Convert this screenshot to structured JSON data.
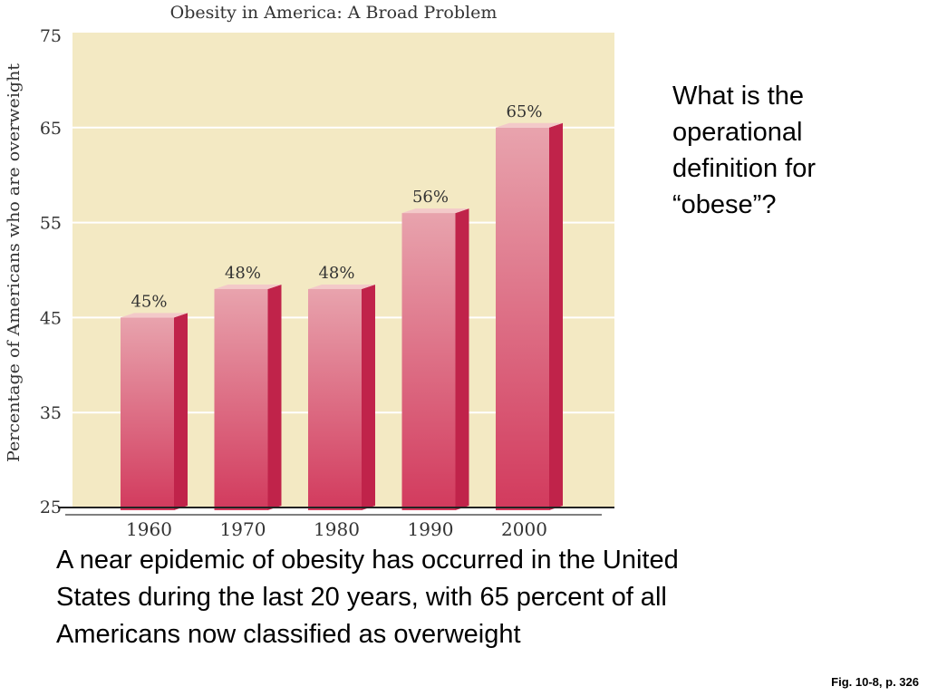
{
  "slide": {
    "question": "What is the operational definition for “obese”?",
    "caption": "A near epidemic of obesity has occurred in the United States during the last 20 years, with 65 percent of all Americans now classified as overweight",
    "figure_ref": "Fig. 10-8, p. 326"
  },
  "colors": {
    "plot_background": "#f3e9c3",
    "bar_front_top": "#e8a3ad",
    "bar_front_bottom": "#d23a5d",
    "bar_side": "#c0234a",
    "bar_top": "#f3c9c9",
    "gridline": "#ffffff",
    "axis": "#222222"
  },
  "chart_data": {
    "type": "bar",
    "title": "Obesity in America: A Broad Problem",
    "xlabel": "",
    "ylabel": "Percentage of Americans who are overweight",
    "categories": [
      "1960",
      "1970",
      "1980",
      "1990",
      "2000"
    ],
    "values": [
      45,
      48,
      48,
      56,
      65
    ],
    "data_labels": [
      "45%",
      "48%",
      "48%",
      "56%",
      "65%"
    ],
    "ylim": [
      25,
      75
    ],
    "yticks": [
      25,
      35,
      45,
      55,
      65,
      75
    ],
    "grid": true,
    "legend": "none"
  }
}
